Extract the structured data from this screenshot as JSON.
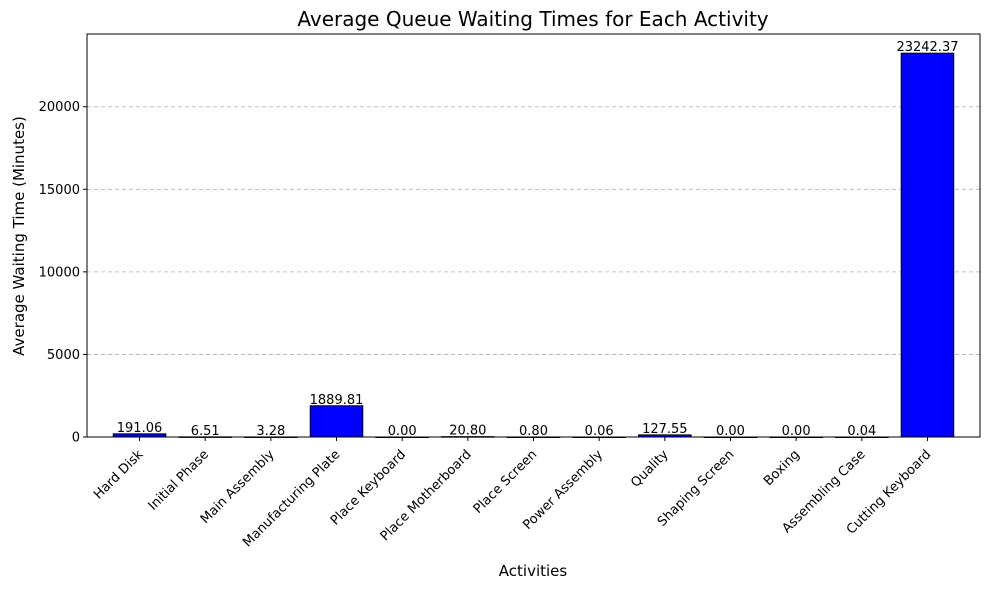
{
  "chart_data": {
    "type": "bar",
    "title": "Average Queue Waiting Times for Each Activity",
    "xlabel": "Activities",
    "ylabel": "Average Waiting Time (Minutes)",
    "categories": [
      "Hard Disk",
      "Initial Phase",
      "Main Assembly",
      "Manufacturing Plate",
      "Place Keyboard",
      "Place Motherboard",
      "Place Screen",
      "Power Assembly",
      "Quality",
      "Shaping Screen",
      "Boxing",
      "Assembling Case",
      "Cutting Keyboard"
    ],
    "values": [
      191.06,
      6.51,
      3.28,
      1889.81,
      0.0,
      20.8,
      0.8,
      0.06,
      127.55,
      0.0,
      0.0,
      0.04,
      23242.37
    ],
    "data_labels": [
      "191.06",
      "6.51",
      "3.28",
      "1889.81",
      "0.00",
      "20.80",
      "0.80",
      "0.06",
      "127.55",
      "0.00",
      "0.00",
      "0.04",
      "23242.37"
    ],
    "ylim": [
      0,
      24404.49
    ],
    "yticks": [
      0,
      5000,
      10000,
      15000,
      20000
    ],
    "grid": "y-axis dashed",
    "bar_color": "#0000ff",
    "edge_color": "#000000"
  }
}
